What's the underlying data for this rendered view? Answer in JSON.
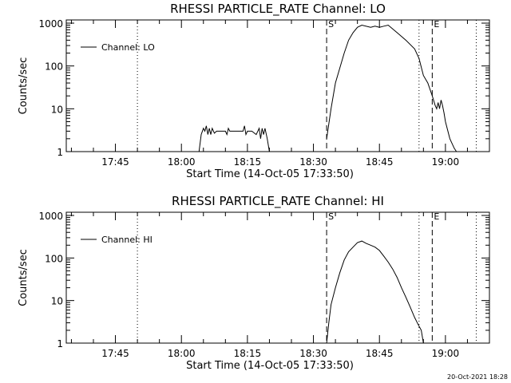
{
  "footer": "20-Oct-2021 18:28",
  "chart_data": [
    {
      "type": "line",
      "title": "RHESSI PARTICLE_RATE Channel: LO",
      "xlabel": "Start Time (14-Oct-05 17:33:50)",
      "ylabel": "Counts/sec",
      "yscale": "log",
      "xlim": [
        "17:33:50",
        "19:10:00"
      ],
      "ylim": [
        1,
        1000
      ],
      "x_ticks": [
        "17:45",
        "18:00",
        "18:15",
        "18:30",
        "18:45",
        "19:00"
      ],
      "y_ticks": [
        "1",
        "10",
        "100",
        "1000"
      ],
      "legend": "Channel: LO",
      "legend_position": "top-left",
      "markers": [
        {
          "label": "S",
          "time": "18:33:00",
          "style": "dashed"
        },
        {
          "label": "E",
          "time": "18:57:00",
          "style": "dashed"
        },
        {
          "label": "",
          "time": "17:50:00",
          "style": "dotted"
        },
        {
          "label": "",
          "time": "18:54:00",
          "style": "dotted"
        },
        {
          "label": "",
          "time": "19:07:00",
          "style": "dotted"
        }
      ],
      "series": [
        {
          "name": "Channel: LO",
          "x": [
            "18:04:00",
            "18:04:30",
            "18:05:00",
            "18:05:20",
            "18:05:40",
            "18:06:00",
            "18:06:20",
            "18:06:40",
            "18:07:00",
            "18:07:30",
            "18:08:00",
            "18:09:00",
            "18:10:00",
            "18:10:20",
            "18:10:40",
            "18:11:00",
            "18:12:00",
            "18:13:00",
            "18:14:00",
            "18:14:20",
            "18:14:40",
            "18:15:00",
            "18:16:00",
            "18:17:00",
            "18:17:40",
            "18:18:00",
            "18:18:20",
            "18:18:40",
            "18:19:00",
            "18:19:30",
            "18:20:00",
            null,
            "18:33:00",
            "18:34:00",
            "18:35:00",
            "18:37:00",
            "18:38:00",
            "18:39:00",
            "18:40:00",
            "18:41:00",
            "18:43:00",
            "18:44:00",
            "18:45:00",
            "18:46:00",
            "18:47:00",
            "18:49:00",
            "18:51:00",
            "18:53:00",
            "18:54:00",
            "18:55:00",
            "18:56:00",
            "18:57:00",
            "18:57:40",
            "18:58:00",
            "18:58:20",
            "18:58:40",
            "18:59:00",
            "18:59:20",
            "18:59:40",
            "19:00:00",
            "19:01:00",
            "19:02:00",
            "19:02:30"
          ],
          "y": [
            1,
            2.5,
            3.5,
            3,
            4,
            2.5,
            3.5,
            2.5,
            3.5,
            2.7,
            3,
            3,
            3,
            2.5,
            3.5,
            3,
            3,
            3,
            3,
            4,
            2.5,
            3,
            3,
            2.5,
            3.5,
            2,
            3.5,
            2.5,
            3.5,
            2,
            1,
            null,
            2,
            10,
            40,
            200,
            400,
            600,
            800,
            900,
            800,
            850,
            800,
            850,
            900,
            600,
            400,
            250,
            150,
            60,
            40,
            20,
            12,
            10,
            14,
            10,
            16,
            12,
            8,
            5,
            2,
            1.2,
            1
          ]
        }
      ]
    },
    {
      "type": "line",
      "title": "RHESSI PARTICLE_RATE Channel: HI",
      "xlabel": "Start Time (14-Oct-05 17:33:50)",
      "ylabel": "Counts/sec",
      "yscale": "log",
      "xlim": [
        "17:33:50",
        "19:10:00"
      ],
      "ylim": [
        1,
        1000
      ],
      "x_ticks": [
        "17:45",
        "18:00",
        "18:15",
        "18:30",
        "18:45",
        "19:00"
      ],
      "y_ticks": [
        "1",
        "10",
        "100",
        "1000"
      ],
      "legend": "Channel: HI",
      "legend_position": "top-left",
      "markers": [
        {
          "label": "S",
          "time": "18:33:00",
          "style": "dashed"
        },
        {
          "label": "E",
          "time": "18:57:00",
          "style": "dashed"
        },
        {
          "label": "",
          "time": "17:50:00",
          "style": "dotted"
        },
        {
          "label": "",
          "time": "18:54:00",
          "style": "dotted"
        },
        {
          "label": "",
          "time": "19:07:00",
          "style": "dotted"
        }
      ],
      "series": [
        {
          "name": "Channel: HI",
          "x": [
            "18:33:00",
            "18:33:30",
            "18:34:00",
            "18:35:00",
            "18:36:00",
            "18:37:00",
            "18:38:00",
            "18:39:00",
            "18:40:00",
            "18:41:00",
            "18:42:00",
            "18:43:00",
            "18:44:00",
            "18:45:00",
            "18:46:00",
            "18:47:00",
            "18:48:00",
            "18:49:00",
            "18:50:00",
            "18:51:00",
            "18:52:00",
            "18:53:00",
            "18:54:00",
            "18:54:30",
            "18:55:00"
          ],
          "y": [
            1,
            3,
            8,
            20,
            45,
            90,
            140,
            180,
            230,
            250,
            220,
            200,
            180,
            150,
            110,
            80,
            55,
            35,
            20,
            12,
            7,
            4,
            2.5,
            2,
            1
          ]
        }
      ]
    }
  ]
}
